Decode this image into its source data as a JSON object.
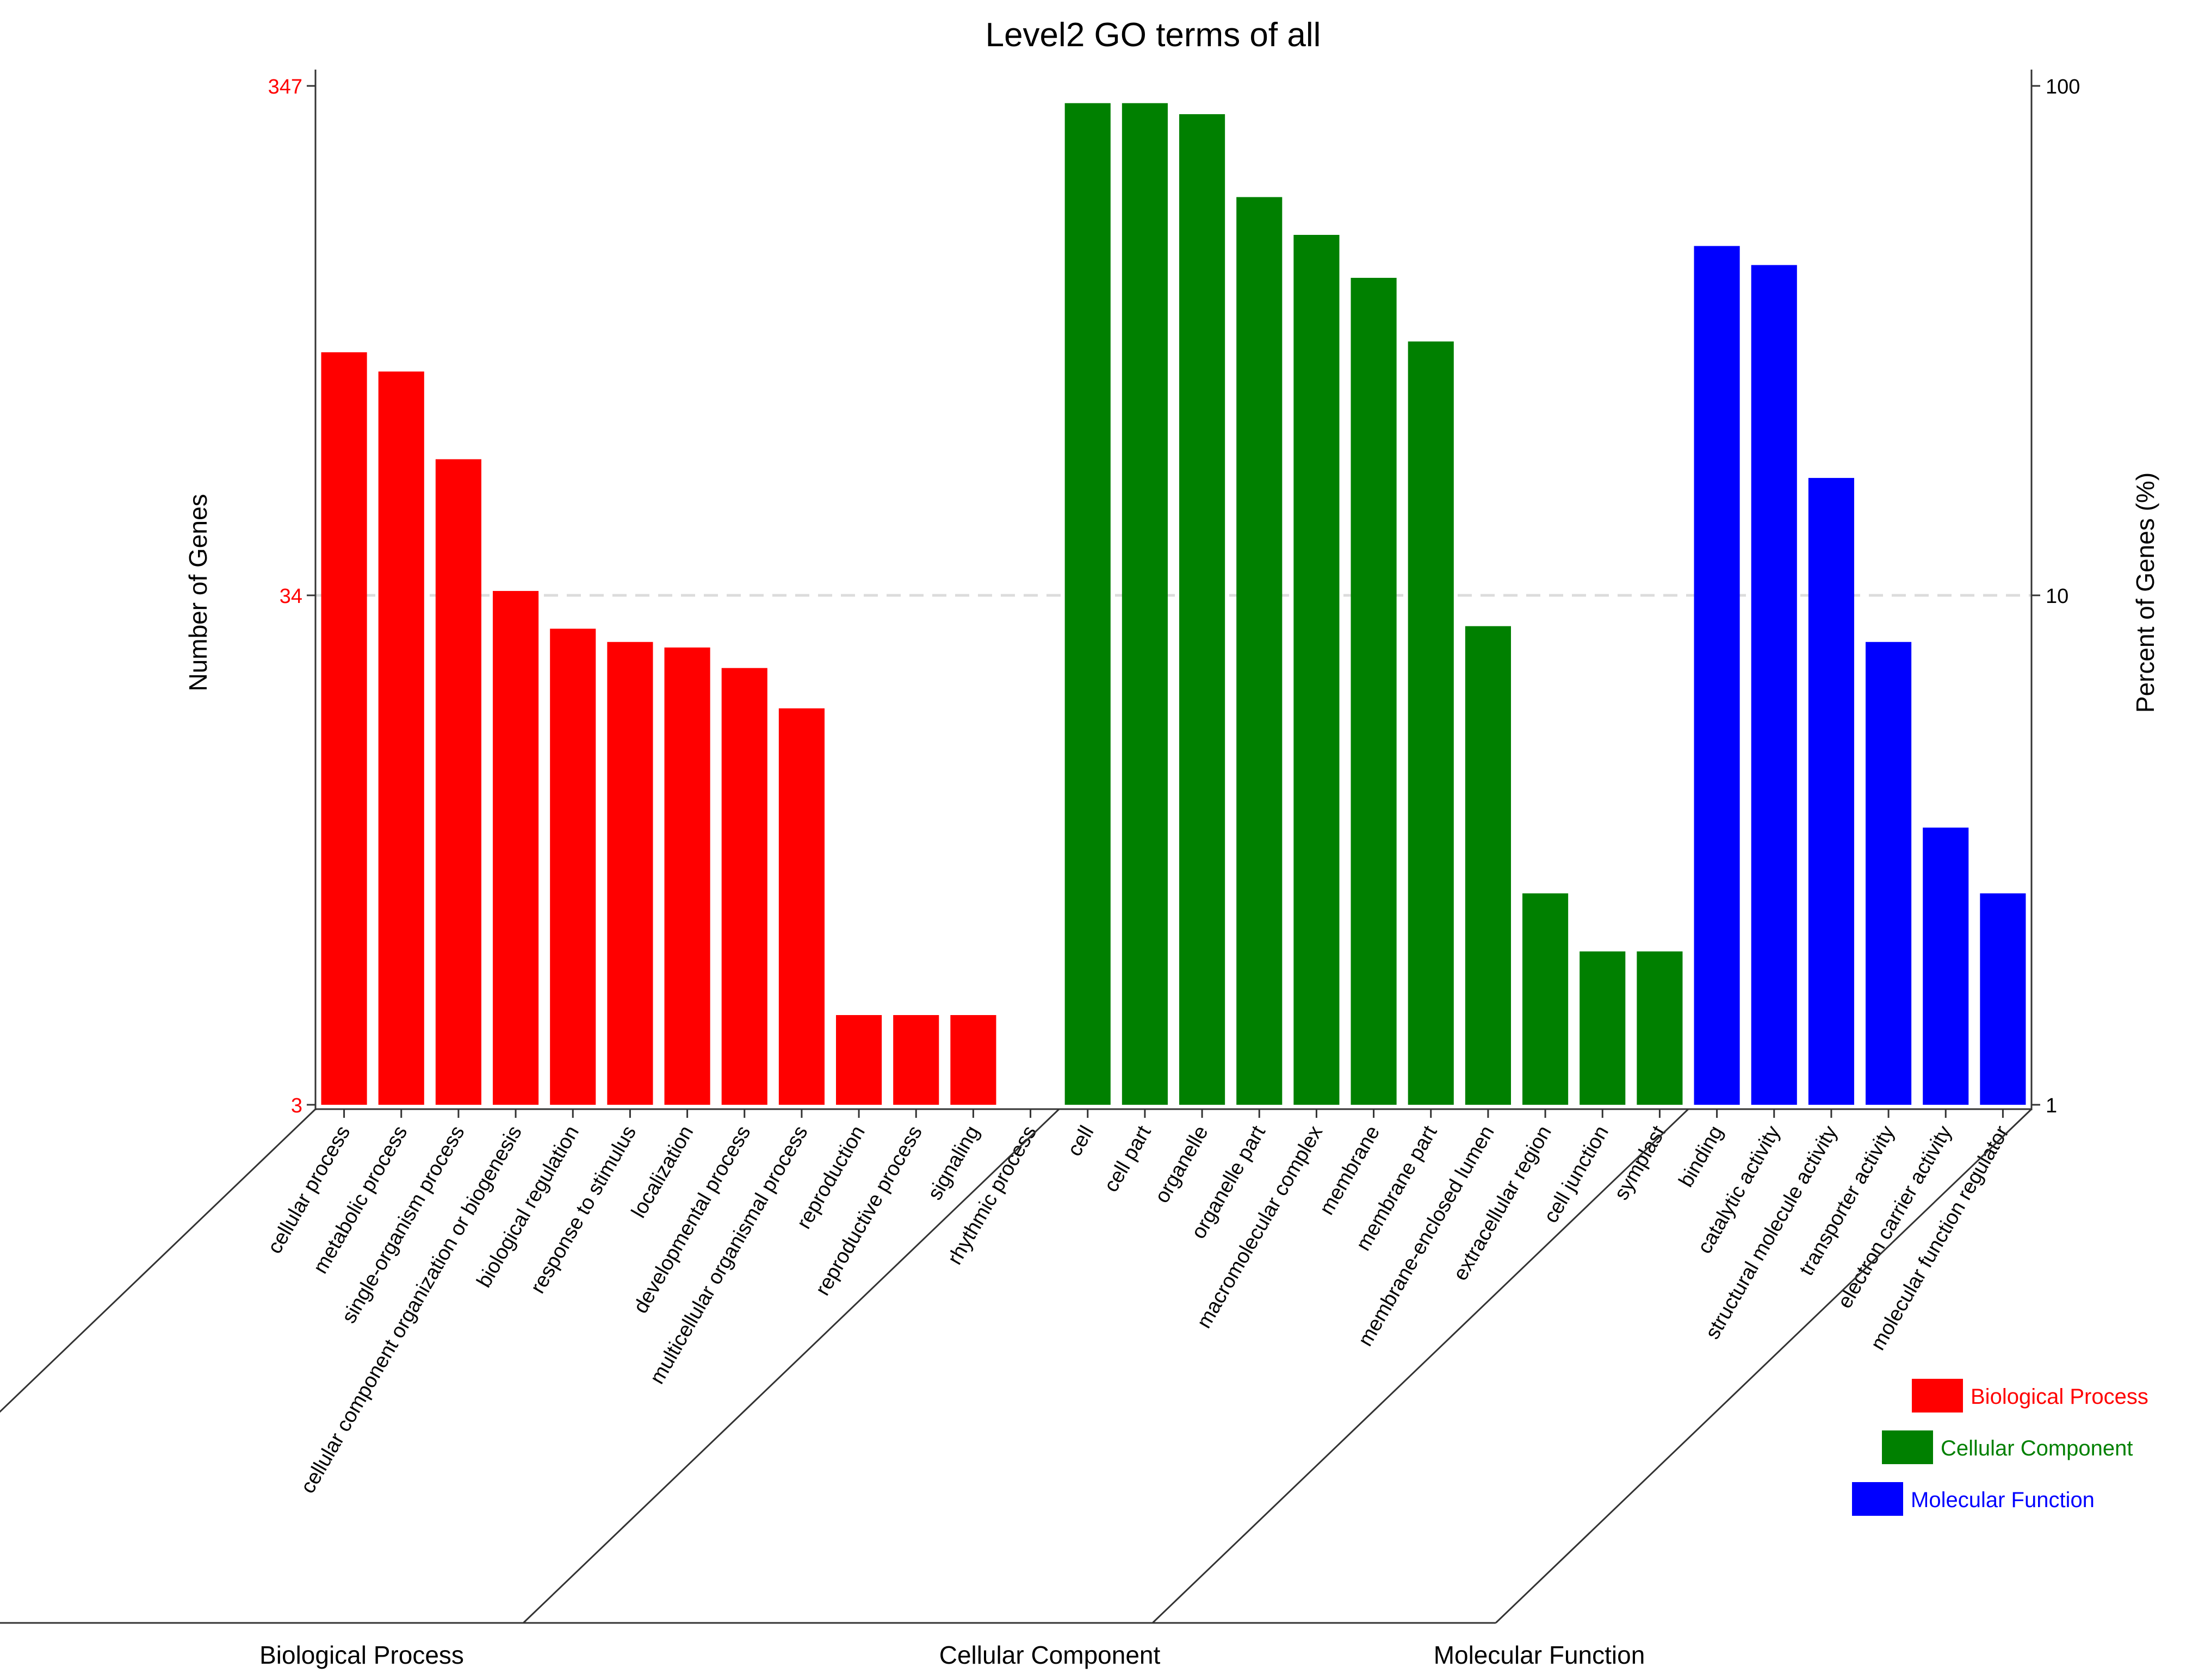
{
  "colors": {
    "biological_process": "#ff0000",
    "cellular_component": "#008000",
    "molecular_function": "#0000ff",
    "left_tick_text": "#ff0000",
    "axis": "#333333",
    "gridline": "#dcdcdc"
  },
  "chart_data": {
    "type": "bar",
    "title": "Level2 GO terms of all",
    "ylabel_left": "Number of Genes",
    "ylabel_right": "Percent of Genes (%)",
    "y_scale": "log",
    "left_ticks": [
      "347",
      "34",
      "3"
    ],
    "right_ticks": [
      "100",
      "10",
      "1"
    ],
    "ylim_left": [
      3,
      347
    ],
    "ylim_right_percent": [
      1,
      100
    ],
    "grid": "horizontal dashed line at middle tick",
    "legend_position": "bottom-right",
    "legend": [
      {
        "label": "Biological Process",
        "color_key": "biological_process"
      },
      {
        "label": "Cellular Component",
        "color_key": "cellular_component"
      },
      {
        "label": "Molecular Function",
        "color_key": "molecular_function"
      }
    ],
    "groups": [
      {
        "name": "Biological Process",
        "color_key": "biological_process",
        "categories": [
          "cellular process",
          "metabolic process",
          "single-organism process",
          "cellular component organization or biogenesis",
          "biological regulation",
          "response to stimulus",
          "localization",
          "developmental process",
          "multicellular organismal process",
          "reproduction",
          "reproductive process",
          "signaling",
          "rhythmic process"
        ],
        "percent_values": [
          30.0,
          27.5,
          18.5,
          10.2,
          8.6,
          8.1,
          7.9,
          7.2,
          6.0,
          1.5,
          1.5,
          1.5,
          1.0
        ]
      },
      {
        "name": "Cellular Component",
        "color_key": "cellular_component",
        "categories": [
          "cell",
          "cell part",
          "organelle",
          "organelle part",
          "macromolecular complex",
          "membrane",
          "membrane part",
          "membrane-enclosed lumen",
          "extracellular region",
          "cell junction",
          "symplast"
        ],
        "percent_values": [
          92.5,
          92.5,
          88.0,
          60.5,
          51.0,
          42.0,
          31.5,
          8.7,
          2.6,
          2.0,
          2.0
        ]
      },
      {
        "name": "Molecular Function",
        "color_key": "molecular_function",
        "categories": [
          "binding",
          "catalytic activity",
          "structural molecule activity",
          "transporter activity",
          "electron carrier activity",
          "molecular function regulator"
        ],
        "percent_values": [
          48.5,
          44.5,
          17.0,
          8.1,
          3.5,
          2.6
        ]
      }
    ]
  }
}
